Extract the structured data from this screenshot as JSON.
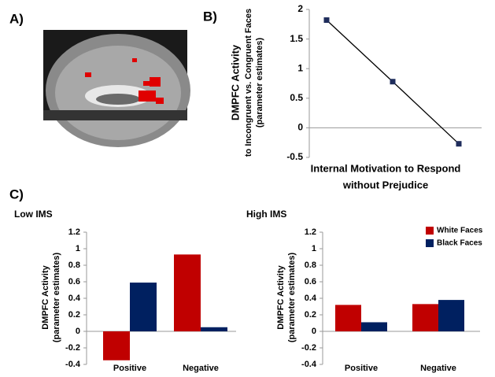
{
  "panel_labels": {
    "a": "A)",
    "b": "B)",
    "c": "C)"
  },
  "chart_data": [
    {
      "type": "line",
      "ylabel": [
        "DMPFC Activity",
        "to Incongruent vs. Congruent Faces",
        "(parameter estimates)"
      ],
      "xlabel": [
        "Internal Motivation to Respond",
        "without Prejudice"
      ],
      "categories": [
        null,
        null,
        null
      ],
      "values": [
        1.82,
        0.78,
        -0.27
      ],
      "color": "#000000",
      "marker_color": "#1f2d5c",
      "ylim": [
        -0.5,
        2
      ],
      "yticks": [
        -0.5,
        0,
        0.5,
        1,
        1.5,
        2
      ]
    },
    {
      "type": "bar",
      "title": "Low IMS",
      "ylabel": [
        "DMPFC Activity",
        "(parameter estimates)"
      ],
      "categories": [
        "Positive",
        "Negative"
      ],
      "series": [
        {
          "color": "#c00000",
          "values": [
            -0.35,
            0.93
          ]
        },
        {
          "color": "#002060",
          "values": [
            0.59,
            0.05
          ]
        }
      ],
      "ylim": [
        -0.4,
        1.2
      ],
      "yticks": [
        -0.4,
        -0.2,
        0,
        0.2,
        0.4,
        0.6,
        0.8,
        1,
        1.2
      ]
    },
    {
      "type": "bar",
      "title": "High IMS",
      "ylabel": [
        "DMPFC Activity",
        "(parameter estimates)"
      ],
      "categories": [
        "Positive",
        "Negative"
      ],
      "series": [
        {
          "name": "White Faces",
          "color": "#c00000",
          "values": [
            0.32,
            0.33
          ]
        },
        {
          "name": "Black Faces",
          "color": "#002060",
          "values": [
            0.11,
            0.38
          ]
        }
      ],
      "legend": "upper right",
      "ylim": [
        -0.4,
        1.2
      ],
      "yticks": [
        -0.4,
        -0.2,
        0,
        0.2,
        0.4,
        0.6,
        0.8,
        1,
        1.2
      ]
    }
  ]
}
